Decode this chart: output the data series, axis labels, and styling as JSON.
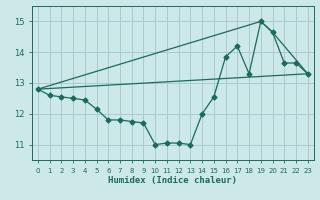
{
  "bg_color": "#cce8e8",
  "grid_color": "#aacccc",
  "line_color": "#1a6b5a",
  "xlabel": "Humidex (Indice chaleur)",
  "xlim": [
    -0.5,
    23.5
  ],
  "ylim": [
    10.5,
    15.5
  ],
  "xticks": [
    0,
    1,
    2,
    3,
    4,
    5,
    6,
    7,
    8,
    9,
    10,
    11,
    12,
    13,
    14,
    15,
    16,
    17,
    18,
    19,
    20,
    21,
    22,
    23
  ],
  "yticks": [
    11,
    12,
    13,
    14,
    15
  ],
  "line1_x": [
    0,
    1,
    2,
    3,
    4,
    5,
    6,
    7,
    8,
    9,
    10,
    11,
    12,
    13,
    14,
    15,
    16,
    17,
    18,
    19,
    20,
    21,
    22,
    23
  ],
  "line1_y": [
    12.8,
    12.6,
    12.55,
    12.5,
    12.45,
    12.15,
    11.8,
    11.8,
    11.75,
    11.7,
    11.0,
    11.05,
    11.05,
    11.0,
    12.0,
    12.55,
    13.85,
    14.2,
    13.3,
    15.0,
    14.65,
    13.65,
    13.65,
    13.3
  ],
  "line2_x": [
    0,
    19,
    20,
    23
  ],
  "line2_y": [
    12.8,
    15.0,
    14.65,
    13.3
  ],
  "line3_x": [
    0,
    23
  ],
  "line3_y": [
    12.8,
    13.3
  ]
}
